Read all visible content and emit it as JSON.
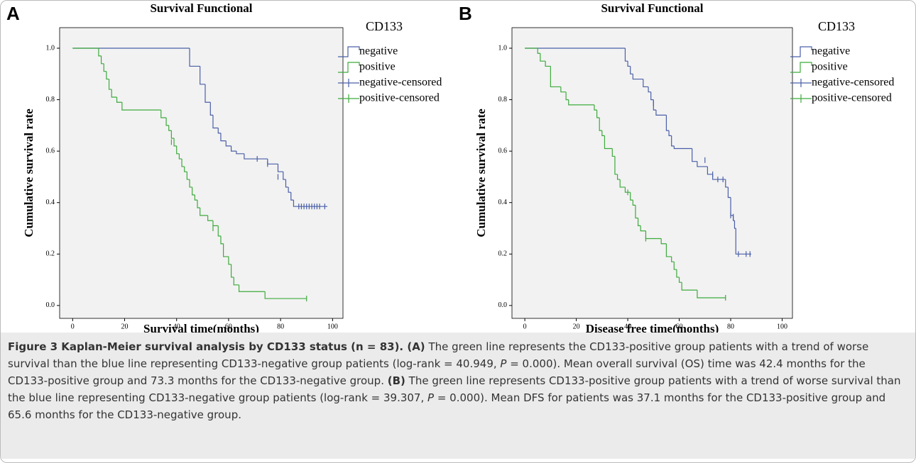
{
  "chart_data": [
    {
      "type": "step",
      "panel_label": "A",
      "title": "Survival Functional",
      "x_label": "Survival time(months)",
      "y_label": "Cumulative survival rate",
      "legend_title": "CD133",
      "xlim": [
        -5,
        104
      ],
      "ylim": [
        -0.05,
        1.08
      ],
      "xticks": [
        0,
        20,
        40,
        60,
        80,
        100
      ],
      "yticks": [
        {
          "value": 0,
          "label": "0.0"
        },
        0.2,
        0.4,
        0.6,
        0.8,
        {
          "value": 1,
          "label": "1.0"
        }
      ],
      "series": [
        {
          "name": "negative",
          "kind": "step",
          "color": "#4a5fa8",
          "x": [
            0,
            45,
            49,
            51,
            53,
            54,
            56,
            57,
            59,
            61,
            63,
            66,
            75,
            79,
            81,
            82,
            83,
            84,
            85,
            98
          ],
          "values": [
            1.0,
            0.93,
            0.86,
            0.79,
            0.74,
            0.69,
            0.67,
            0.64,
            0.62,
            0.6,
            0.59,
            0.57,
            0.55,
            0.52,
            0.49,
            0.46,
            0.44,
            0.41,
            0.385,
            0.385
          ]
        },
        {
          "name": "positive",
          "kind": "step",
          "color": "#3daa3d",
          "x": [
            0,
            10,
            11,
            12,
            13,
            14,
            15,
            17,
            19,
            34,
            36,
            37,
            38,
            39,
            40,
            41,
            42,
            43,
            44,
            45,
            46,
            47,
            48,
            49,
            52,
            54,
            56,
            57,
            58,
            60,
            61,
            62,
            64,
            74,
            90
          ],
          "values": [
            1.0,
            0.97,
            0.94,
            0.91,
            0.88,
            0.84,
            0.81,
            0.79,
            0.76,
            0.73,
            0.7,
            0.68,
            0.65,
            0.62,
            0.59,
            0.57,
            0.54,
            0.52,
            0.49,
            0.46,
            0.43,
            0.41,
            0.38,
            0.35,
            0.33,
            0.31,
            0.27,
            0.24,
            0.19,
            0.16,
            0.11,
            0.08,
            0.054,
            0.027,
            0.027
          ]
        },
        {
          "name": "negative-censored",
          "kind": "censored",
          "color": "#4a5fa8",
          "x": [
            71,
            75,
            79,
            87,
            88,
            89,
            90,
            91,
            92,
            93,
            94,
            95,
            97
          ],
          "values": [
            0.57,
            0.55,
            0.5,
            0.385,
            0.385,
            0.385,
            0.385,
            0.385,
            0.385,
            0.385,
            0.385,
            0.385,
            0.385
          ]
        },
        {
          "name": "positive-censored",
          "kind": "censored",
          "color": "#3daa3d",
          "x": [
            38,
            54,
            90
          ],
          "values": [
            0.635,
            0.3,
            0.027
          ]
        }
      ]
    },
    {
      "type": "step",
      "panel_label": "B",
      "title": "Survival Functional",
      "x_label": "Disease free time(months)",
      "y_label": "Cumulative survival rate",
      "legend_title": "CD133",
      "xlim": [
        -5,
        104
      ],
      "ylim": [
        -0.05,
        1.08
      ],
      "xticks": [
        0,
        20,
        40,
        60,
        80,
        100
      ],
      "yticks": [
        {
          "value": 0,
          "label": "0.0"
        },
        0.2,
        0.4,
        0.6,
        0.8,
        {
          "value": 1,
          "label": "1.0"
        }
      ],
      "series": [
        {
          "name": "negative",
          "kind": "step",
          "color": "#4a5fa8",
          "x": [
            0,
            39,
            40,
            41,
            42,
            46,
            48,
            49,
            50,
            51,
            55,
            56,
            57,
            58,
            65,
            67,
            71,
            73,
            78,
            79,
            80,
            81,
            81.5,
            82,
            88
          ],
          "values": [
            1.0,
            0.95,
            0.93,
            0.9,
            0.88,
            0.85,
            0.83,
            0.8,
            0.76,
            0.74,
            0.68,
            0.66,
            0.62,
            0.61,
            0.56,
            0.54,
            0.51,
            0.49,
            0.46,
            0.42,
            0.35,
            0.33,
            0.3,
            0.2,
            0.2
          ]
        },
        {
          "name": "positive",
          "kind": "step",
          "color": "#3daa3d",
          "x": [
            0,
            5,
            6,
            8,
            10,
            14,
            16,
            17,
            27,
            28,
            29,
            30,
            31,
            34,
            35,
            36,
            37,
            39,
            41,
            42,
            43,
            44,
            45,
            47,
            53,
            55,
            57,
            58,
            59,
            60,
            61,
            67,
            78
          ],
          "values": [
            1.0,
            0.98,
            0.95,
            0.93,
            0.85,
            0.83,
            0.8,
            0.78,
            0.76,
            0.73,
            0.68,
            0.66,
            0.61,
            0.58,
            0.51,
            0.49,
            0.46,
            0.44,
            0.41,
            0.39,
            0.34,
            0.31,
            0.29,
            0.26,
            0.24,
            0.19,
            0.17,
            0.14,
            0.11,
            0.09,
            0.06,
            0.03,
            0.03
          ]
        },
        {
          "name": "negative-censored",
          "kind": "censored",
          "color": "#4a5fa8",
          "x": [
            50,
            70,
            73,
            75,
            77,
            80,
            81,
            83,
            86,
            87.5
          ],
          "values": [
            0.785,
            0.565,
            0.51,
            0.49,
            0.49,
            0.35,
            0.345,
            0.2,
            0.2,
            0.2
          ]
        },
        {
          "name": "positive-censored",
          "kind": "censored",
          "color": "#3daa3d",
          "x": [
            40,
            47,
            78
          ],
          "values": [
            0.44,
            0.26,
            0.03
          ]
        }
      ]
    }
  ],
  "caption": [
    {
      "text": "Figure 3 Kaplan-Meier survival analysis by CD133 status (n = 83). (A)",
      "style": "bold"
    },
    {
      "text": " The green line represents the CD133-positive group patients with a trend of worse survival than the blue line representing CD133-negative group patients (log-rank = 40.949, ",
      "style": "normal"
    },
    {
      "text": "P",
      "style": "italic"
    },
    {
      "text": " = 0.000). Mean overall survival (OS) time was 42.4 months for the CD133-positive group and 73.3 months for the CD133-negative group. ",
      "style": "normal"
    },
    {
      "text": "(B)",
      "style": "bold"
    },
    {
      "text": " The green line represents CD133-positive group patients with a trend of worse survival than the blue line representing CD133-negative group patients (log-rank = 39.307, ",
      "style": "normal"
    },
    {
      "text": "P",
      "style": "italic"
    },
    {
      "text": " = 0.000). Mean DFS for patients was 37.1 months for the CD133-positive group and 65.6 months for the CD133-negative group.",
      "style": "normal"
    }
  ]
}
